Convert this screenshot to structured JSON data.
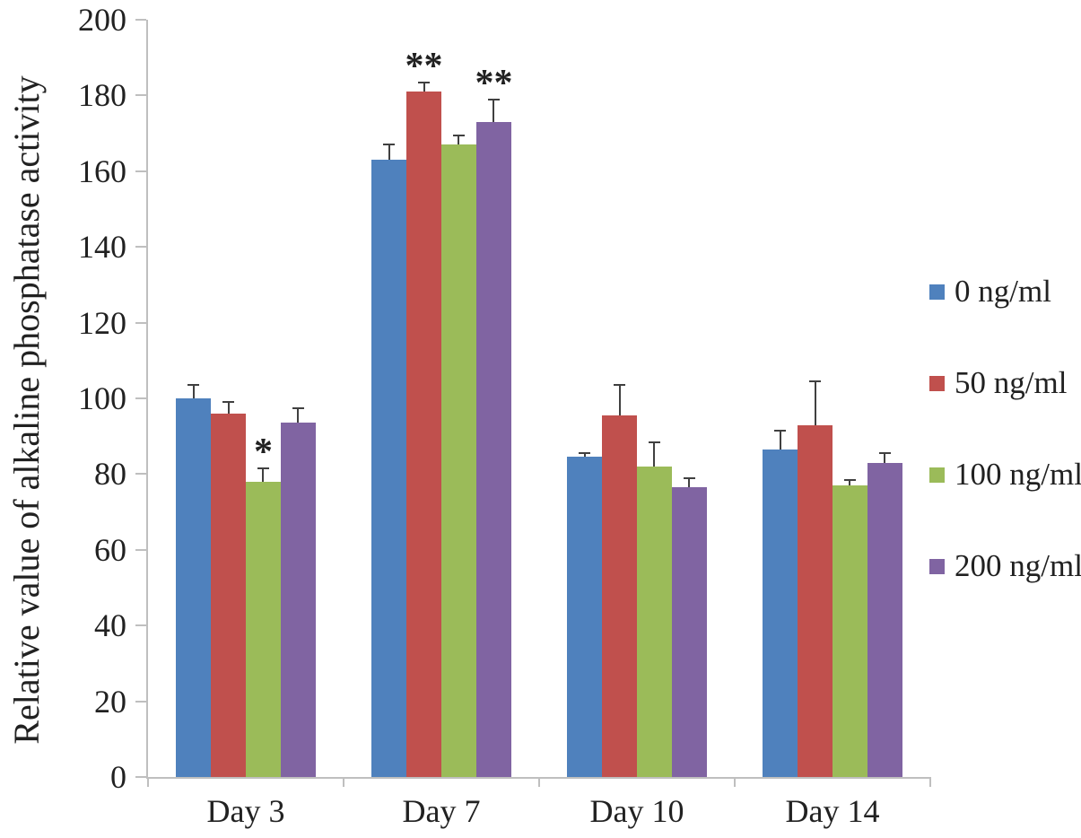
{
  "chart_data": {
    "type": "bar",
    "ylabel": "Relative value of alkaline phosphatase activity",
    "xlabel": "",
    "ylim": [
      0,
      200
    ],
    "ytick_step": 20,
    "grid": false,
    "legend_position": "right",
    "background_color": "#ffffff",
    "axis_color": "#bfbfbf",
    "error_bar_color": "#404040",
    "text_color": "#212121",
    "categories": [
      "Day 3",
      "Day 7",
      "Day 10",
      "Day 14"
    ],
    "series": [
      {
        "name": "0 ng/ml",
        "color": "#4f81bd",
        "values": [
          100,
          163,
          84.5,
          86.5
        ],
        "errors": [
          3.5,
          4,
          1,
          5
        ]
      },
      {
        "name": "50 ng/ml",
        "color": "#c0504d",
        "values": [
          96,
          181,
          95.5,
          93
        ],
        "errors": [
          3,
          2.5,
          8,
          11.5
        ]
      },
      {
        "name": "100 ng/ml",
        "color": "#9bbb59",
        "values": [
          78,
          167,
          82,
          77
        ],
        "errors": [
          3.5,
          2.5,
          6.5,
          1.5
        ]
      },
      {
        "name": "200 ng/ml",
        "color": "#8064a2",
        "values": [
          93.5,
          173,
          76.5,
          83
        ],
        "errors": [
          4,
          6,
          2.5,
          2.5
        ]
      }
    ],
    "annotations": [
      {
        "category": "Day 3",
        "series": "100 ng/ml",
        "text": "*"
      },
      {
        "category": "Day 7",
        "series": "50 ng/ml",
        "text": "**"
      },
      {
        "category": "Day 7",
        "series": "200 ng/ml",
        "text": "**"
      }
    ]
  }
}
